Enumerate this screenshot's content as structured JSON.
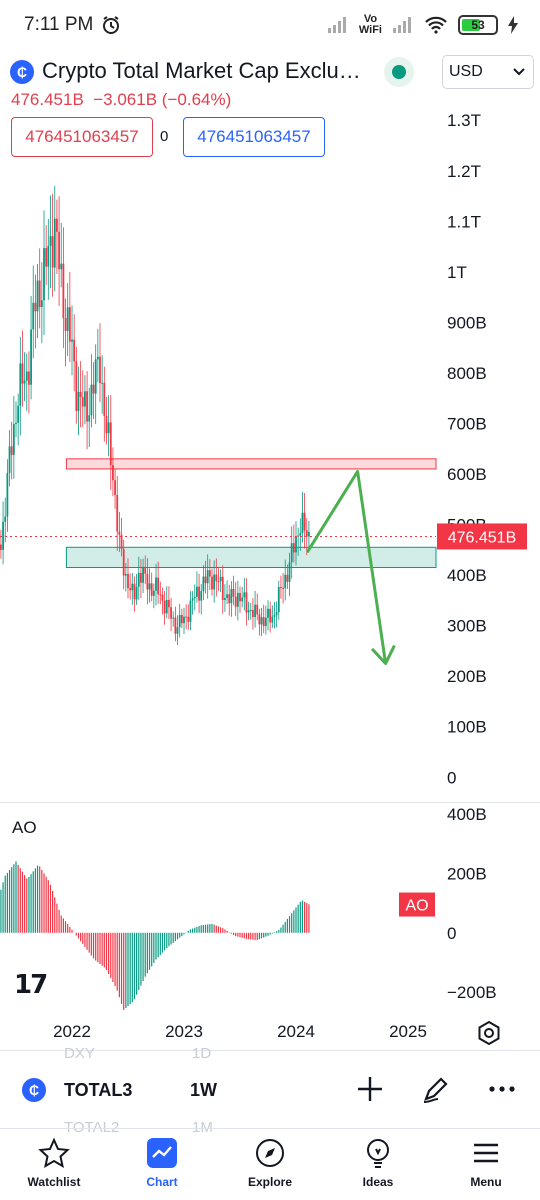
{
  "status_bar": {
    "time": "7:11 PM",
    "battery": "53",
    "vo_wifi_top": "Vo",
    "vo_wifi_bottom": "WiFi"
  },
  "header": {
    "symbol_title": "Crypto Total Market Cap Exclu…",
    "currency": "USD",
    "price": "476.451B",
    "change": "−3.061B",
    "change_pct": "(−0.64%)"
  },
  "bid_ask": {
    "bid": "476451063457",
    "spread": "0",
    "ask": "476451063457"
  },
  "chart_data": {
    "type": "candlestick",
    "y_axis_labels": [
      "1.3T",
      "1.2T",
      "1.1T",
      "1T",
      "900B",
      "800B",
      "700B",
      "600B",
      "500B",
      "400B",
      "300B",
      "200B",
      "100B",
      "0"
    ],
    "y_axis_values": [
      1300,
      1200,
      1100,
      1000,
      900,
      800,
      700,
      600,
      500,
      400,
      300,
      200,
      100,
      0
    ],
    "y_unit": "billions USD",
    "x_axis_labels": [
      "2022",
      "2023",
      "2024",
      "2025"
    ],
    "current_price_label": "476.451B",
    "current_price": 476.451,
    "ylim": [
      -45,
      1340
    ],
    "zones": [
      {
        "name": "resistance",
        "low": 610,
        "high": 630,
        "x_start": "2021-12",
        "x_end": "2025-03",
        "color": "#f23645"
      },
      {
        "name": "support",
        "low": 415,
        "high": 455,
        "x_start": "2021-12",
        "x_end": "2025-03",
        "color": "#089981"
      }
    ],
    "projection_arrow": [
      [
        2024.1,
        445
      ],
      [
        2024.55,
        605
      ],
      [
        2024.8,
        225
      ]
    ],
    "price_path": [
      [
        2021.0,
        480
      ],
      [
        2021.05,
        700
      ],
      [
        2021.12,
        850
      ],
      [
        2021.2,
        780
      ],
      [
        2021.28,
        520
      ],
      [
        2021.36,
        450
      ],
      [
        2021.44,
        620
      ],
      [
        2021.52,
        760
      ],
      [
        2021.6,
        800
      ],
      [
        2021.68,
        950
      ],
      [
        2021.76,
        1000
      ],
      [
        2021.8,
        1050
      ],
      [
        2021.84,
        1100
      ],
      [
        2021.9,
        980
      ],
      [
        2021.98,
        870
      ],
      [
        2022.05,
        760
      ],
      [
        2022.12,
        720
      ],
      [
        2022.2,
        780
      ],
      [
        2022.25,
        830
      ],
      [
        2022.3,
        690
      ],
      [
        2022.36,
        620
      ],
      [
        2022.42,
        460
      ],
      [
        2022.48,
        400
      ],
      [
        2022.55,
        350
      ],
      [
        2022.6,
        410
      ],
      [
        2022.68,
        380
      ],
      [
        2022.76,
        370
      ],
      [
        2022.84,
        340
      ],
      [
        2022.92,
        300
      ],
      [
        2023.0,
        310
      ],
      [
        2023.08,
        350
      ],
      [
        2023.16,
        380
      ],
      [
        2023.24,
        400
      ],
      [
        2023.32,
        380
      ],
      [
        2023.4,
        350
      ],
      [
        2023.48,
        360
      ],
      [
        2023.56,
        340
      ],
      [
        2023.64,
        320
      ],
      [
        2023.72,
        310
      ],
      [
        2023.8,
        320
      ],
      [
        2023.88,
        380
      ],
      [
        2023.94,
        420
      ],
      [
        2024.0,
        470
      ],
      [
        2024.04,
        510
      ],
      [
        2024.08,
        480
      ],
      [
        2024.12,
        476
      ]
    ],
    "ao": {
      "label": "AO",
      "y_axis_labels": [
        "400B",
        "200B",
        "0",
        "−200B"
      ],
      "y_axis_values": [
        400,
        200,
        0,
        -200
      ],
      "ylim": [
        -280,
        440
      ],
      "badge": "AO",
      "path": [
        [
          2021.0,
          380
        ],
        [
          2021.1,
          220
        ],
        [
          2021.2,
          40
        ],
        [
          2021.3,
          60
        ],
        [
          2021.4,
          190
        ],
        [
          2021.5,
          240
        ],
        [
          2021.6,
          180
        ],
        [
          2021.7,
          230
        ],
        [
          2021.8,
          170
        ],
        [
          2021.9,
          60
        ],
        [
          2022.0,
          10
        ],
        [
          2022.1,
          -40
        ],
        [
          2022.2,
          -90
        ],
        [
          2022.3,
          -120
        ],
        [
          2022.4,
          -190
        ],
        [
          2022.46,
          -260
        ],
        [
          2022.55,
          -230
        ],
        [
          2022.65,
          -150
        ],
        [
          2022.75,
          -90
        ],
        [
          2022.85,
          -50
        ],
        [
          2022.95,
          -20
        ],
        [
          2023.05,
          10
        ],
        [
          2023.15,
          25
        ],
        [
          2023.25,
          30
        ],
        [
          2023.35,
          15
        ],
        [
          2023.45,
          -10
        ],
        [
          2023.55,
          -20
        ],
        [
          2023.65,
          -25
        ],
        [
          2023.75,
          -10
        ],
        [
          2023.85,
          10
        ],
        [
          2023.95,
          60
        ],
        [
          2024.05,
          110
        ],
        [
          2024.12,
          95
        ]
      ]
    }
  },
  "symbol_row": {
    "ghost_top_symbol": "DXY",
    "ghost_top_interval": "1D",
    "symbol": "TOTAL3",
    "interval": "1W",
    "ghost_bottom_symbol": "TOTAL2",
    "ghost_bottom_interval": "1M"
  },
  "bottom_nav": [
    {
      "label": "Watchlist",
      "icon": "star-icon",
      "active": false
    },
    {
      "label": "Chart",
      "icon": "chart-icon",
      "active": true
    },
    {
      "label": "Explore",
      "icon": "compass-icon",
      "active": false
    },
    {
      "label": "Ideas",
      "icon": "lightbulb-icon",
      "active": false
    },
    {
      "label": "Menu",
      "icon": "hamburger-icon",
      "active": false
    }
  ],
  "colors": {
    "up": "#089981",
    "down": "#f23645",
    "accent": "#2962ff",
    "arrow": "#4caf50"
  }
}
